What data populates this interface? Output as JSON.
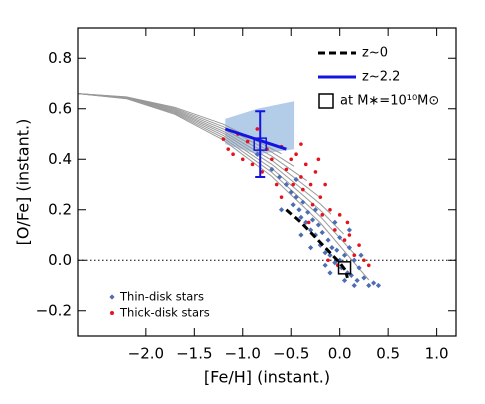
{
  "chart_data": {
    "type": "scatter",
    "xlabel": "[Fe/H] (instant.)",
    "ylabel": "[O/Fe] (instant.)",
    "xlim": [
      -2.7,
      1.2
    ],
    "ylim": [
      -0.3,
      0.92
    ],
    "xticks": [
      {
        "value": -2.0,
        "label": "−2.0"
      },
      {
        "value": -1.5,
        "label": "−1.5"
      },
      {
        "value": -1.0,
        "label": "−1.0"
      },
      {
        "value": -0.5,
        "label": "−0.5"
      },
      {
        "value": 0.0,
        "label": "0.0"
      },
      0.5,
      {
        "value": 1.0,
        "label": "1.0"
      }
    ],
    "yticks": [
      {
        "value": -0.2,
        "label": "−0.2"
      },
      {
        "value": 0.0,
        "label": "0.0"
      },
      0.2,
      0.4,
      0.6,
      0.8
    ],
    "hline": 0,
    "tracks": {
      "color": "#999999",
      "lines": [
        {
          "x": [
            -2.7,
            -2.2,
            -1.7,
            -1.2,
            -0.6
          ],
          "y": [
            0.66,
            0.647,
            0.606,
            0.539,
            0.422
          ]
        },
        {
          "x": [
            -2.7,
            -2.2,
            -1.7,
            -1.2,
            -0.7,
            -0.47
          ],
          "y": [
            0.66,
            0.646,
            0.602,
            0.529,
            0.428,
            0.372
          ]
        },
        {
          "x": [
            -2.7,
            -2.2,
            -1.7,
            -1.2,
            -0.7,
            -0.34
          ],
          "y": [
            0.66,
            0.645,
            0.598,
            0.52,
            0.412,
            0.315
          ]
        },
        {
          "x": [
            -2.7,
            -2.2,
            -1.7,
            -1.2,
            -0.7,
            -0.21
          ],
          "y": [
            0.66,
            0.644,
            0.594,
            0.511,
            0.396,
            0.251
          ]
        },
        {
          "x": [
            -2.7,
            -2.2,
            -1.7,
            -1.2,
            -0.7,
            -0.2,
            -0.09
          ],
          "y": [
            0.66,
            0.643,
            0.59,
            0.503,
            0.38,
            0.223,
            0.183
          ]
        },
        {
          "x": [
            -2.7,
            -2.2,
            -1.7,
            -1.2,
            -0.7,
            -0.2,
            0.04
          ],
          "y": [
            0.66,
            0.642,
            0.586,
            0.494,
            0.364,
            0.198,
            0.104
          ]
        },
        {
          "x": [
            -2.7,
            -2.2,
            -1.7,
            -1.2,
            -0.7,
            -0.2,
            0.17
          ],
          "y": [
            0.66,
            0.641,
            0.582,
            0.485,
            0.348,
            0.173,
            0.017
          ]
        },
        {
          "x": [
            -2.7,
            -2.2,
            -1.7,
            -1.2,
            -0.7,
            -0.2,
            0.3
          ],
          "y": [
            0.66,
            0.64,
            0.578,
            0.476,
            0.332,
            0.148,
            -0.078
          ]
        }
      ]
    },
    "band": {
      "color": "#b3cde8",
      "x": [
        -1.18,
        -0.85,
        -0.47
      ],
      "lower": [
        0.46,
        0.42,
        0.44
      ],
      "upper": [
        0.56,
        0.6,
        0.63
      ]
    },
    "series": [
      {
        "name": "Thin-disk stars",
        "kind": "scatter",
        "marker": "diamond",
        "color": "#4c6db3",
        "legend": "lower left",
        "x": [
          -0.85,
          -0.7,
          -0.62,
          -0.55,
          -0.5,
          -0.48,
          -0.45,
          -0.42,
          -0.4,
          -0.38,
          -0.35,
          -0.33,
          -0.3,
          -0.28,
          -0.25,
          -0.22,
          -0.2,
          -0.18,
          -0.15,
          -0.12,
          -0.1,
          -0.08,
          -0.05,
          -0.03,
          0.0,
          0.02,
          0.05,
          0.08,
          0.1,
          0.12,
          0.15,
          0.18,
          0.2,
          0.25,
          0.3,
          0.35,
          0.4,
          -0.6,
          -0.3,
          -0.15,
          0.0,
          0.1,
          -0.05,
          0.22,
          -0.4,
          -0.25,
          0.05,
          -0.1,
          0.15,
          -0.45
        ],
        "y": [
          0.42,
          0.36,
          0.33,
          0.3,
          0.27,
          0.22,
          0.25,
          0.2,
          0.17,
          0.23,
          0.15,
          0.19,
          0.12,
          0.16,
          0.1,
          0.14,
          0.06,
          0.11,
          0.03,
          0.08,
          0.02,
          0.05,
          -0.01,
          0.04,
          0.0,
          -0.03,
          0.02,
          -0.05,
          0.05,
          -0.06,
          0.0,
          -0.08,
          -0.03,
          -0.07,
          -0.1,
          -0.09,
          -0.1,
          0.2,
          0.05,
          -0.02,
          0.09,
          0.12,
          0.15,
          0.02,
          0.1,
          0.2,
          -0.08,
          -0.05,
          -0.1,
          0.32
        ]
      },
      {
        "name": "Thick-disk stars",
        "kind": "scatter",
        "marker": "circle",
        "color": "#e5121b",
        "legend": "lower left",
        "x": [
          -1.2,
          -1.15,
          -1.1,
          -1.05,
          -1.0,
          -0.95,
          -0.9,
          -0.85,
          -0.8,
          -0.75,
          -0.7,
          -0.65,
          -0.6,
          -0.55,
          -0.5,
          -0.48,
          -0.45,
          -0.4,
          -0.38,
          -0.35,
          -0.3,
          -0.28,
          -0.25,
          -0.2,
          -0.18,
          -0.15,
          -0.1,
          -0.05,
          0.0,
          0.05,
          0.1,
          0.15,
          0.2,
          0.25,
          -0.6,
          -0.32,
          -0.12,
          0.3,
          -0.22,
          -0.4,
          -0.02,
          0.08
        ],
        "y": [
          0.48,
          0.44,
          0.42,
          0.5,
          0.4,
          0.47,
          0.38,
          0.52,
          0.35,
          0.44,
          0.4,
          0.3,
          0.45,
          0.36,
          0.4,
          0.3,
          0.42,
          0.33,
          0.28,
          0.38,
          0.3,
          0.22,
          0.35,
          0.25,
          0.18,
          0.3,
          0.2,
          0.12,
          0.18,
          0.08,
          0.1,
          0.02,
          0.06,
          0.0,
          0.25,
          0.15,
          0.0,
          -0.02,
          0.4,
          0.46,
          -0.02,
          0.15
        ]
      },
      {
        "name": "z~0",
        "kind": "line",
        "dash": true,
        "color": "#000000",
        "legend": "upper right",
        "x": [
          -0.55,
          -0.4,
          -0.25,
          -0.1,
          0.0,
          0.06,
          0.08
        ],
        "y": [
          0.2,
          0.15,
          0.09,
          0.03,
          -0.01,
          -0.04,
          -0.07
        ]
      },
      {
        "name": "z~2.2",
        "kind": "line",
        "dash": false,
        "color": "#1414e0",
        "legend": "upper right",
        "x": [
          -1.18,
          -0.55
        ],
        "y": [
          0.52,
          0.44
        ]
      }
    ],
    "mass_points": {
      "label": "at M∗=10¹⁰M⊙",
      "legend": "upper right",
      "x": [
        -0.82,
        0.05
      ],
      "y": [
        0.46,
        -0.03
      ],
      "errors": [
        0.13,
        null
      ],
      "colors": [
        "#1414e0",
        "#000000"
      ]
    }
  }
}
